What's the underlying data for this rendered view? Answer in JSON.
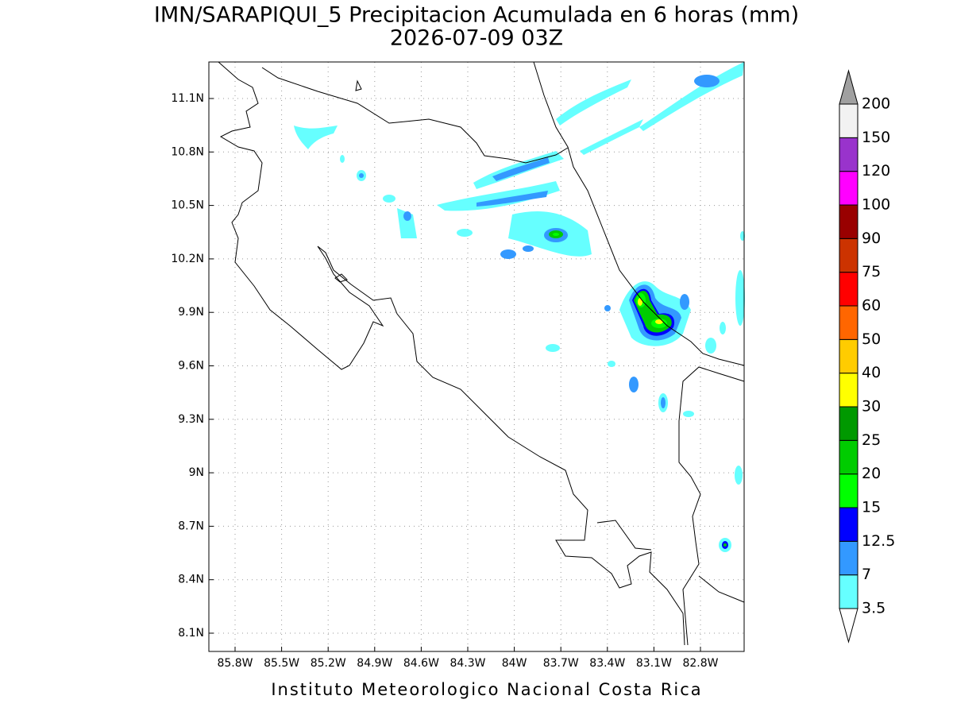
{
  "header": {
    "title": "IMN/SARAPIQUI_5 Precipitacion Acumulada en 6 horas (mm)",
    "subtitle": "2026-07-09 03Z"
  },
  "map": {
    "lon_ticks": [
      "85.8W",
      "85.5W",
      "85.2W",
      "84.9W",
      "84.6W",
      "84.3W",
      "84W",
      "83.7W",
      "83.4W",
      "83.1W",
      "82.8W"
    ],
    "lat_ticks": [
      "11.1N",
      "10.8N",
      "10.5N",
      "10.2N",
      "9.9N",
      "9.6N",
      "9.3N",
      "9N",
      "8.7N",
      "8.4N",
      "8.1N"
    ]
  },
  "colorbar": {
    "levels": [
      3.5,
      7,
      12.5,
      15,
      20,
      25,
      30,
      40,
      50,
      60,
      75,
      90,
      100,
      120,
      150,
      200
    ],
    "colors": [
      "#ffffff",
      "#66ffff",
      "#3399ff",
      "#0000ff",
      "#00ff00",
      "#00cc00",
      "#009900",
      "#ffff00",
      "#ffcc00",
      "#ff6600",
      "#ff0000",
      "#cc3300",
      "#990000",
      "#ff00ff",
      "#9933cc",
      "#f2f2f2",
      "#a0a0a0"
    ]
  },
  "footer": "Instituto Meteorologico Nacional Costa Rica"
}
